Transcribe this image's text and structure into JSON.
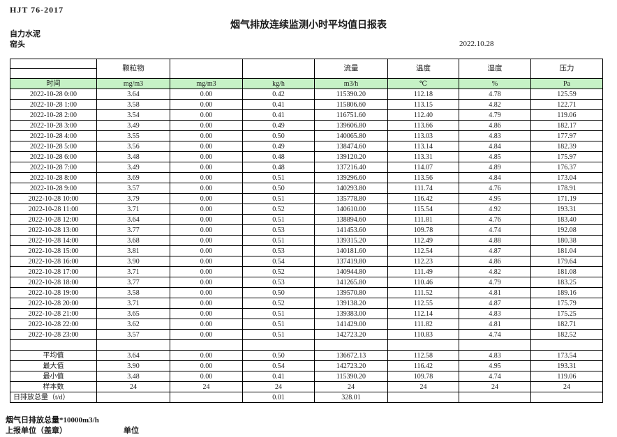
{
  "page": {
    "doc_code": "HJT  76-2017",
    "title": "烟气排放连续监测小时平均值日报表",
    "company": "自力水泥",
    "location": "窑头",
    "date": "2022.10.28"
  },
  "colors": {
    "header_green": "#c6f2c6",
    "border": "#000000"
  },
  "table": {
    "group_headers": [
      "",
      "颗粒物",
      "",
      "",
      "流量",
      "温度",
      "湿度",
      "压力"
    ],
    "unit_row": [
      "时间",
      "mg/m3",
      "mg/m3",
      "kg/h",
      "m3/h",
      "℃",
      "%",
      "Pa"
    ],
    "rows": [
      [
        "2022-10-28 0:00",
        "3.64",
        "0.00",
        "0.42",
        "115390.20",
        "112.18",
        "4.78",
        "125.59"
      ],
      [
        "2022-10-28 1:00",
        "3.58",
        "0.00",
        "0.41",
        "115806.60",
        "113.15",
        "4.82",
        "122.71"
      ],
      [
        "2022-10-28 2:00",
        "3.54",
        "0.00",
        "0.41",
        "116751.60",
        "112.40",
        "4.79",
        "119.06"
      ],
      [
        "2022-10-28 3:00",
        "3.49",
        "0.00",
        "0.49",
        "139606.80",
        "113.66",
        "4.86",
        "182.17"
      ],
      [
        "2022-10-28 4:00",
        "3.55",
        "0.00",
        "0.50",
        "140065.80",
        "113.03",
        "4.83",
        "177.97"
      ],
      [
        "2022-10-28 5:00",
        "3.56",
        "0.00",
        "0.49",
        "138474.60",
        "113.14",
        "4.84",
        "182.39"
      ],
      [
        "2022-10-28 6:00",
        "3.48",
        "0.00",
        "0.48",
        "139120.20",
        "113.31",
        "4.85",
        "175.97"
      ],
      [
        "2022-10-28 7:00",
        "3.49",
        "0.00",
        "0.48",
        "137216.40",
        "114.07",
        "4.89",
        "176.37"
      ],
      [
        "2022-10-28 8:00",
        "3.69",
        "0.00",
        "0.51",
        "139296.60",
        "113.56",
        "4.84",
        "173.04"
      ],
      [
        "2022-10-28 9:00",
        "3.57",
        "0.00",
        "0.50",
        "140293.80",
        "111.74",
        "4.76",
        "178.91"
      ],
      [
        "2022-10-28 10:00",
        "3.79",
        "0.00",
        "0.51",
        "135778.80",
        "116.42",
        "4.95",
        "171.19"
      ],
      [
        "2022-10-28 11:00",
        "3.71",
        "0.00",
        "0.52",
        "140610.00",
        "115.54",
        "4.92",
        "193.31"
      ],
      [
        "2022-10-28 12:00",
        "3.64",
        "0.00",
        "0.51",
        "138894.60",
        "111.81",
        "4.76",
        "183.40"
      ],
      [
        "2022-10-28 13:00",
        "3.77",
        "0.00",
        "0.53",
        "141453.60",
        "109.78",
        "4.74",
        "192.08"
      ],
      [
        "2022-10-28 14:00",
        "3.68",
        "0.00",
        "0.51",
        "139315.20",
        "112.49",
        "4.88",
        "180.38"
      ],
      [
        "2022-10-28 15:00",
        "3.81",
        "0.00",
        "0.53",
        "140181.60",
        "112.54",
        "4.87",
        "181.04"
      ],
      [
        "2022-10-28 16:00",
        "3.90",
        "0.00",
        "0.54",
        "137419.80",
        "112.23",
        "4.86",
        "179.64"
      ],
      [
        "2022-10-28 17:00",
        "3.71",
        "0.00",
        "0.52",
        "140944.80",
        "111.49",
        "4.82",
        "181.08"
      ],
      [
        "2022-10-28 18:00",
        "3.77",
        "0.00",
        "0.53",
        "141265.80",
        "110.46",
        "4.79",
        "183.25"
      ],
      [
        "2022-10-28 19:00",
        "3.58",
        "0.00",
        "0.50",
        "139570.80",
        "111.52",
        "4.81",
        "189.16"
      ],
      [
        "2022-10-28 20:00",
        "3.71",
        "0.00",
        "0.52",
        "139138.20",
        "112.55",
        "4.87",
        "175.79"
      ],
      [
        "2022-10-28 21:00",
        "3.65",
        "0.00",
        "0.51",
        "139383.00",
        "112.14",
        "4.83",
        "175.25"
      ],
      [
        "2022-10-28 22:00",
        "3.62",
        "0.00",
        "0.51",
        "141429.00",
        "111.82",
        "4.81",
        "182.71"
      ],
      [
        "2022-10-28 23:00",
        "3.57",
        "0.00",
        "0.51",
        "142723.20",
        "110.83",
        "4.74",
        "182.52"
      ]
    ],
    "summary": [
      {
        "label": "平均值",
        "align": "center",
        "values": [
          "3.64",
          "0.00",
          "0.50",
          "136672.13",
          "112.58",
          "4.83",
          "173.54"
        ]
      },
      {
        "label": "最大值",
        "align": "center",
        "values": [
          "3.90",
          "0.00",
          "0.54",
          "142723.20",
          "116.42",
          "4.95",
          "193.31"
        ]
      },
      {
        "label": "最小值",
        "align": "center",
        "values": [
          "3.48",
          "0.00",
          "0.41",
          "115390.20",
          "109.78",
          "4.74",
          "119.06"
        ]
      },
      {
        "label": "样本数",
        "align": "center",
        "values": [
          "24",
          "24",
          "24",
          "24",
          "24",
          "24",
          "24"
        ]
      },
      {
        "label": "日排放总量（t/d）",
        "align": "left",
        "values": [
          "",
          "",
          "0.01",
          "328.01",
          "",
          "",
          ""
        ]
      }
    ]
  },
  "footer": {
    "note": "烟气日排放总量*10000m3/h",
    "report_unit_label": "上报单位（盖章）",
    "unit_label": "单位"
  }
}
